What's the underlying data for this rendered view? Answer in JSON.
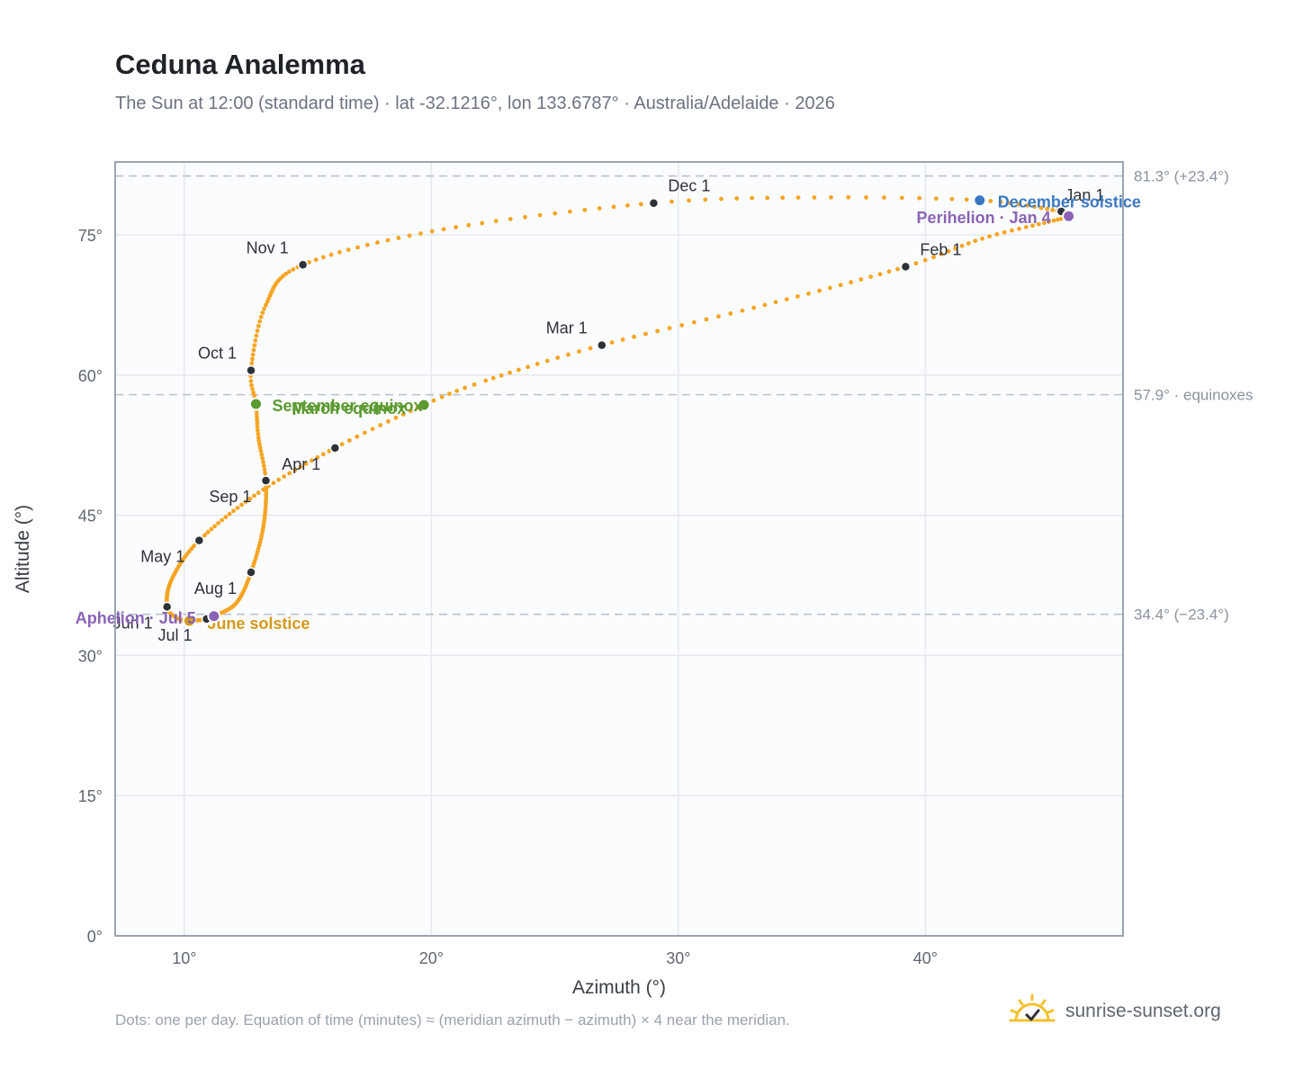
{
  "header": {
    "title": "Ceduna Analemma",
    "subtitle": "The Sun at 12:00 (standard time) · lat -32.1216°, lon 133.6787° · Australia/Adelaide · 2026"
  },
  "footer": {
    "note": "Dots: one per day. Equation of time (minutes) ≈ (meridian azimuth − azimuth) × 4 near the meridian.",
    "brand": "sunrise-sunset.org"
  },
  "colors": {
    "path": "#f5a524",
    "month_marker": "#2d3138",
    "equinox": "#5b9a2f",
    "december_solstice": "#3b78c2",
    "june_solstice": "#d49a1a",
    "apsis": "#8a63b5",
    "reference_line": "#b9c2cc",
    "plot_bg": "#fbfcfe"
  },
  "chart_data": {
    "type": "scatter",
    "xlabel": "Azimuth (°)",
    "ylabel": "Altitude (°)",
    "xlim": [
      7.2,
      48
    ],
    "ylim": [
      0,
      82.8
    ],
    "xticks": [
      10,
      20,
      30,
      40
    ],
    "xtick_labels": [
      "10°",
      "20°",
      "30°",
      "40°"
    ],
    "yticks": [
      0,
      15,
      30,
      45,
      60,
      75
    ],
    "ytick_labels": [
      "0°",
      "15°",
      "30°",
      "45°",
      "60°",
      "75°"
    ],
    "grid": true,
    "reference_lines": [
      {
        "y": 81.3,
        "label": "81.3° (+23.4°)"
      },
      {
        "y": 57.9,
        "label": "57.9° · equinoxes"
      },
      {
        "y": 34.4,
        "label": "34.4° (−23.4°)"
      }
    ],
    "path_anchors": [
      {
        "doy": 1,
        "x": 45.5,
        "y": 77.5
      },
      {
        "doy": 4,
        "x": 45.8,
        "y": 77.0
      },
      {
        "doy": 12,
        "x": 45.0,
        "y": 76.4
      },
      {
        "doy": 22,
        "x": 42.3,
        "y": 74.6
      },
      {
        "doy": 32,
        "x": 39.2,
        "y": 71.6
      },
      {
        "doy": 46,
        "x": 33.5,
        "y": 67.5
      },
      {
        "doy": 60,
        "x": 26.9,
        "y": 63.2
      },
      {
        "doy": 72,
        "x": 22.2,
        "y": 59.4
      },
      {
        "doy": 79,
        "x": 19.7,
        "y": 56.8
      },
      {
        "doy": 91,
        "x": 16.1,
        "y": 52.2
      },
      {
        "doy": 105,
        "x": 13.0,
        "y": 47.4
      },
      {
        "doy": 121,
        "x": 10.6,
        "y": 42.3
      },
      {
        "doy": 136,
        "x": 9.5,
        "y": 38.2
      },
      {
        "doy": 152,
        "x": 9.3,
        "y": 35.2
      },
      {
        "doy": 165,
        "x": 9.7,
        "y": 34.0
      },
      {
        "doy": 172,
        "x": 10.2,
        "y": 33.7
      },
      {
        "doy": 182,
        "x": 10.9,
        "y": 33.9
      },
      {
        "doy": 186,
        "x": 11.2,
        "y": 34.2
      },
      {
        "doy": 200,
        "x": 12.1,
        "y": 35.6
      },
      {
        "doy": 213,
        "x": 12.7,
        "y": 38.9
      },
      {
        "doy": 228,
        "x": 13.2,
        "y": 43.8
      },
      {
        "doy": 244,
        "x": 13.3,
        "y": 48.7
      },
      {
        "doy": 256,
        "x": 13.0,
        "y": 53.3
      },
      {
        "doy": 266,
        "x": 12.9,
        "y": 56.9
      },
      {
        "doy": 274,
        "x": 12.7,
        "y": 60.5
      },
      {
        "doy": 289,
        "x": 13.3,
        "y": 67.5
      },
      {
        "doy": 305,
        "x": 14.8,
        "y": 71.8
      },
      {
        "doy": 320,
        "x": 20.5,
        "y": 75.6
      },
      {
        "doy": 335,
        "x": 29.0,
        "y": 78.4
      },
      {
        "doy": 345,
        "x": 35.5,
        "y": 79.0
      },
      {
        "doy": 355,
        "x": 42.2,
        "y": 78.7
      },
      {
        "doy": 366,
        "x": 45.5,
        "y": 77.5
      }
    ],
    "month_markers": [
      {
        "label": "Jan 1",
        "x": 45.5,
        "y": 77.5,
        "anchor": "start",
        "dx": 4,
        "dy": -12
      },
      {
        "label": "Feb 1",
        "x": 39.2,
        "y": 71.6,
        "anchor": "start",
        "dx": 16,
        "dy": -13
      },
      {
        "label": "Mar 1",
        "x": 26.9,
        "y": 63.2,
        "anchor": "end",
        "dx": -16,
        "dy": -13
      },
      {
        "label": "Apr 1",
        "x": 16.1,
        "y": 52.2,
        "anchor": "end",
        "dx": -16,
        "dy": 24
      },
      {
        "label": "May 1",
        "x": 10.6,
        "y": 42.3,
        "anchor": "end",
        "dx": -16,
        "dy": 24
      },
      {
        "label": "Jun 1",
        "x": 9.3,
        "y": 35.2,
        "anchor": "end",
        "dx": -16,
        "dy": 24
      },
      {
        "label": "Jul 1",
        "x": 10.9,
        "y": 33.9,
        "anchor": "end",
        "dx": -16,
        "dy": 24
      },
      {
        "label": "Aug 1",
        "x": 12.7,
        "y": 38.9,
        "anchor": "end",
        "dx": -16,
        "dy": 24
      },
      {
        "label": "Sep 1",
        "x": 13.3,
        "y": 48.7,
        "anchor": "end",
        "dx": -16,
        "dy": 24
      },
      {
        "label": "Oct 1",
        "x": 12.7,
        "y": 60.5,
        "anchor": "end",
        "dx": -16,
        "dy": -13
      },
      {
        "label": "Nov 1",
        "x": 14.8,
        "y": 71.8,
        "anchor": "end",
        "dx": -16,
        "dy": -13
      },
      {
        "label": "Dec 1",
        "x": 29.0,
        "y": 78.4,
        "anchor": "start",
        "dx": 16,
        "dy": -13
      }
    ],
    "events": [
      {
        "label": "March equinox",
        "x": 19.7,
        "y": 56.8,
        "color": "#5b9a2f",
        "anchor": "end",
        "dx": -20,
        "dy": 10
      },
      {
        "label": "September equinox",
        "x": 12.9,
        "y": 56.9,
        "color": "#5b9a2f",
        "anchor": "start",
        "dx": 18,
        "dy": 8
      },
      {
        "label": "December solstice",
        "x": 42.2,
        "y": 78.7,
        "color": "#3b78c2",
        "anchor": "start",
        "dx": 20,
        "dy": 8
      },
      {
        "label": "June solstice",
        "x": 10.2,
        "y": 33.7,
        "color": "#d49a1a",
        "anchor": "start",
        "dx": 20,
        "dy": 9
      },
      {
        "label": "Perihelion · Jan 4",
        "x": 45.8,
        "y": 77.0,
        "color": "#8a63b5",
        "anchor": "end",
        "dx": -20,
        "dy": 8
      },
      {
        "label": "Aphelion · Jul 5",
        "x": 11.2,
        "y": 34.2,
        "color": "#8a63b5",
        "anchor": "end",
        "dx": -20,
        "dy": 8
      }
    ]
  }
}
